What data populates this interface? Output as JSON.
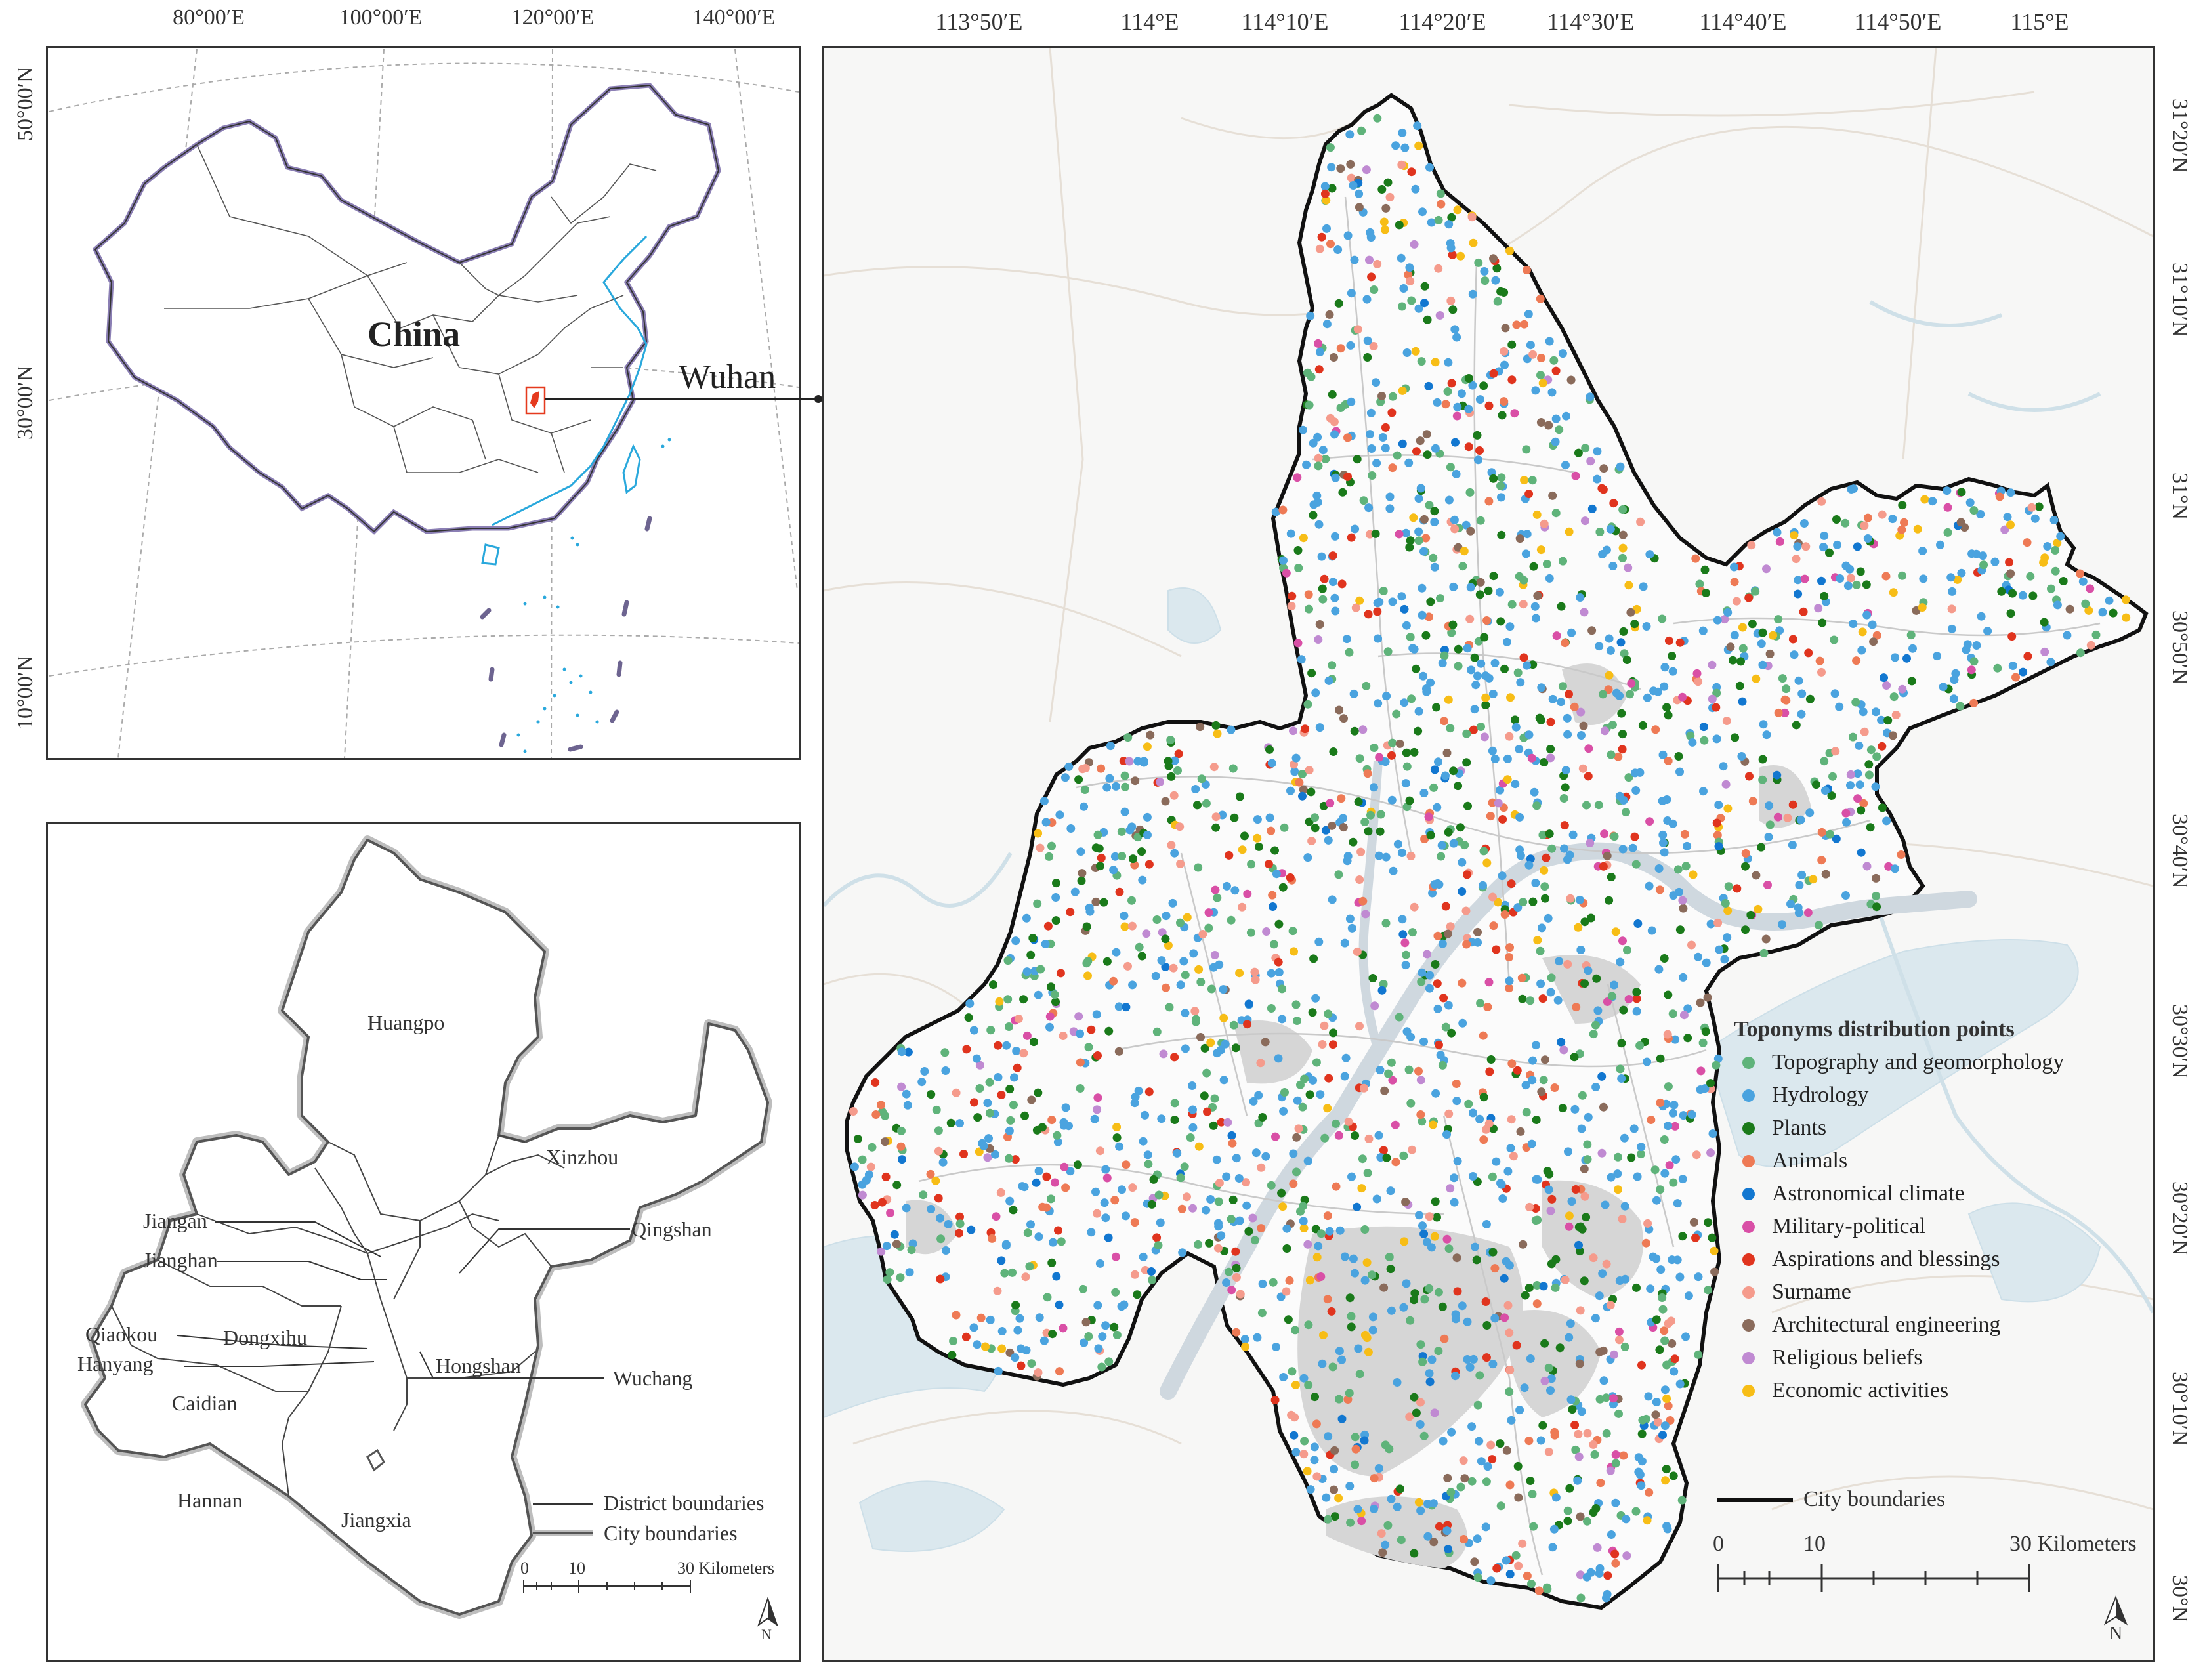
{
  "colors": {
    "topography": "#5fb37a",
    "hydrology": "#4aa3df",
    "plants": "#1a7a1a",
    "animals": "#ee7a55",
    "astronomical": "#1277d0",
    "military": "#d94fa6",
    "aspirations": "#e0341e",
    "surname": "#f59b8c",
    "architectural": "#8a6b5b",
    "religious": "#c08ad2",
    "economic": "#f7bd16",
    "city_boundary": "#111111",
    "china_border": "#7c6ea8",
    "coast": "#29a8dc",
    "wuhan_marker": "#e53a1e"
  },
  "china_panel": {
    "lon_ticks": [
      "80°00′E",
      "100°00′E",
      "120°00′E",
      "140°00′E"
    ],
    "lat_ticks": [
      "50°00′N",
      "30°00′N",
      "10°00′N"
    ],
    "country_label": "China",
    "callout_label": "Wuhan"
  },
  "district_panel": {
    "districts": [
      "Huangpo",
      "Xinzhou",
      "Jiangan",
      "Jianghan",
      "Qiaokou",
      "Dongxihu",
      "Hanyang",
      "Qingshan",
      "Hongshan",
      "Caidian",
      "Wuchang",
      "Hannan",
      "Jiangxia"
    ],
    "legend": {
      "district": "District boundaries",
      "city": "City boundaries"
    },
    "scale": {
      "ticks": [
        "0",
        "10",
        "30 Kilometers"
      ]
    },
    "north": "N"
  },
  "main_map": {
    "lon_ticks": [
      "113°50′E",
      "114°E",
      "114°10′E",
      "114°20′E",
      "114°30′E",
      "114°40′E",
      "114°50′E",
      "115°E"
    ],
    "lat_ticks": [
      "31°20′N",
      "31°10′N",
      "31°N",
      "30°50′N",
      "30°40′N",
      "30°30′N",
      "30°20′N",
      "30°10′N",
      "30°N"
    ],
    "legend": {
      "title": "Toponyms distribution points",
      "items": [
        {
          "label": "Topography and geomorphology",
          "color_key": "topography"
        },
        {
          "label": "Hydrology",
          "color_key": "hydrology"
        },
        {
          "label": "Plants",
          "color_key": "plants"
        },
        {
          "label": "Animals",
          "color_key": "animals"
        },
        {
          "label": "Astronomical climate",
          "color_key": "astronomical"
        },
        {
          "label": "Military-political",
          "color_key": "military"
        },
        {
          "label": "Aspirations and blessings",
          "color_key": "aspirations"
        },
        {
          "label": "Surname",
          "color_key": "surname"
        },
        {
          "label": "Architectural engineering",
          "color_key": "architectural"
        },
        {
          "label": "Religious beliefs",
          "color_key": "religious"
        },
        {
          "label": "Economic activities",
          "color_key": "economic"
        }
      ],
      "city_boundary": "City boundaries"
    },
    "scale": {
      "ticks": [
        "0",
        "10",
        "30 Kilometers"
      ]
    },
    "north": "N"
  }
}
